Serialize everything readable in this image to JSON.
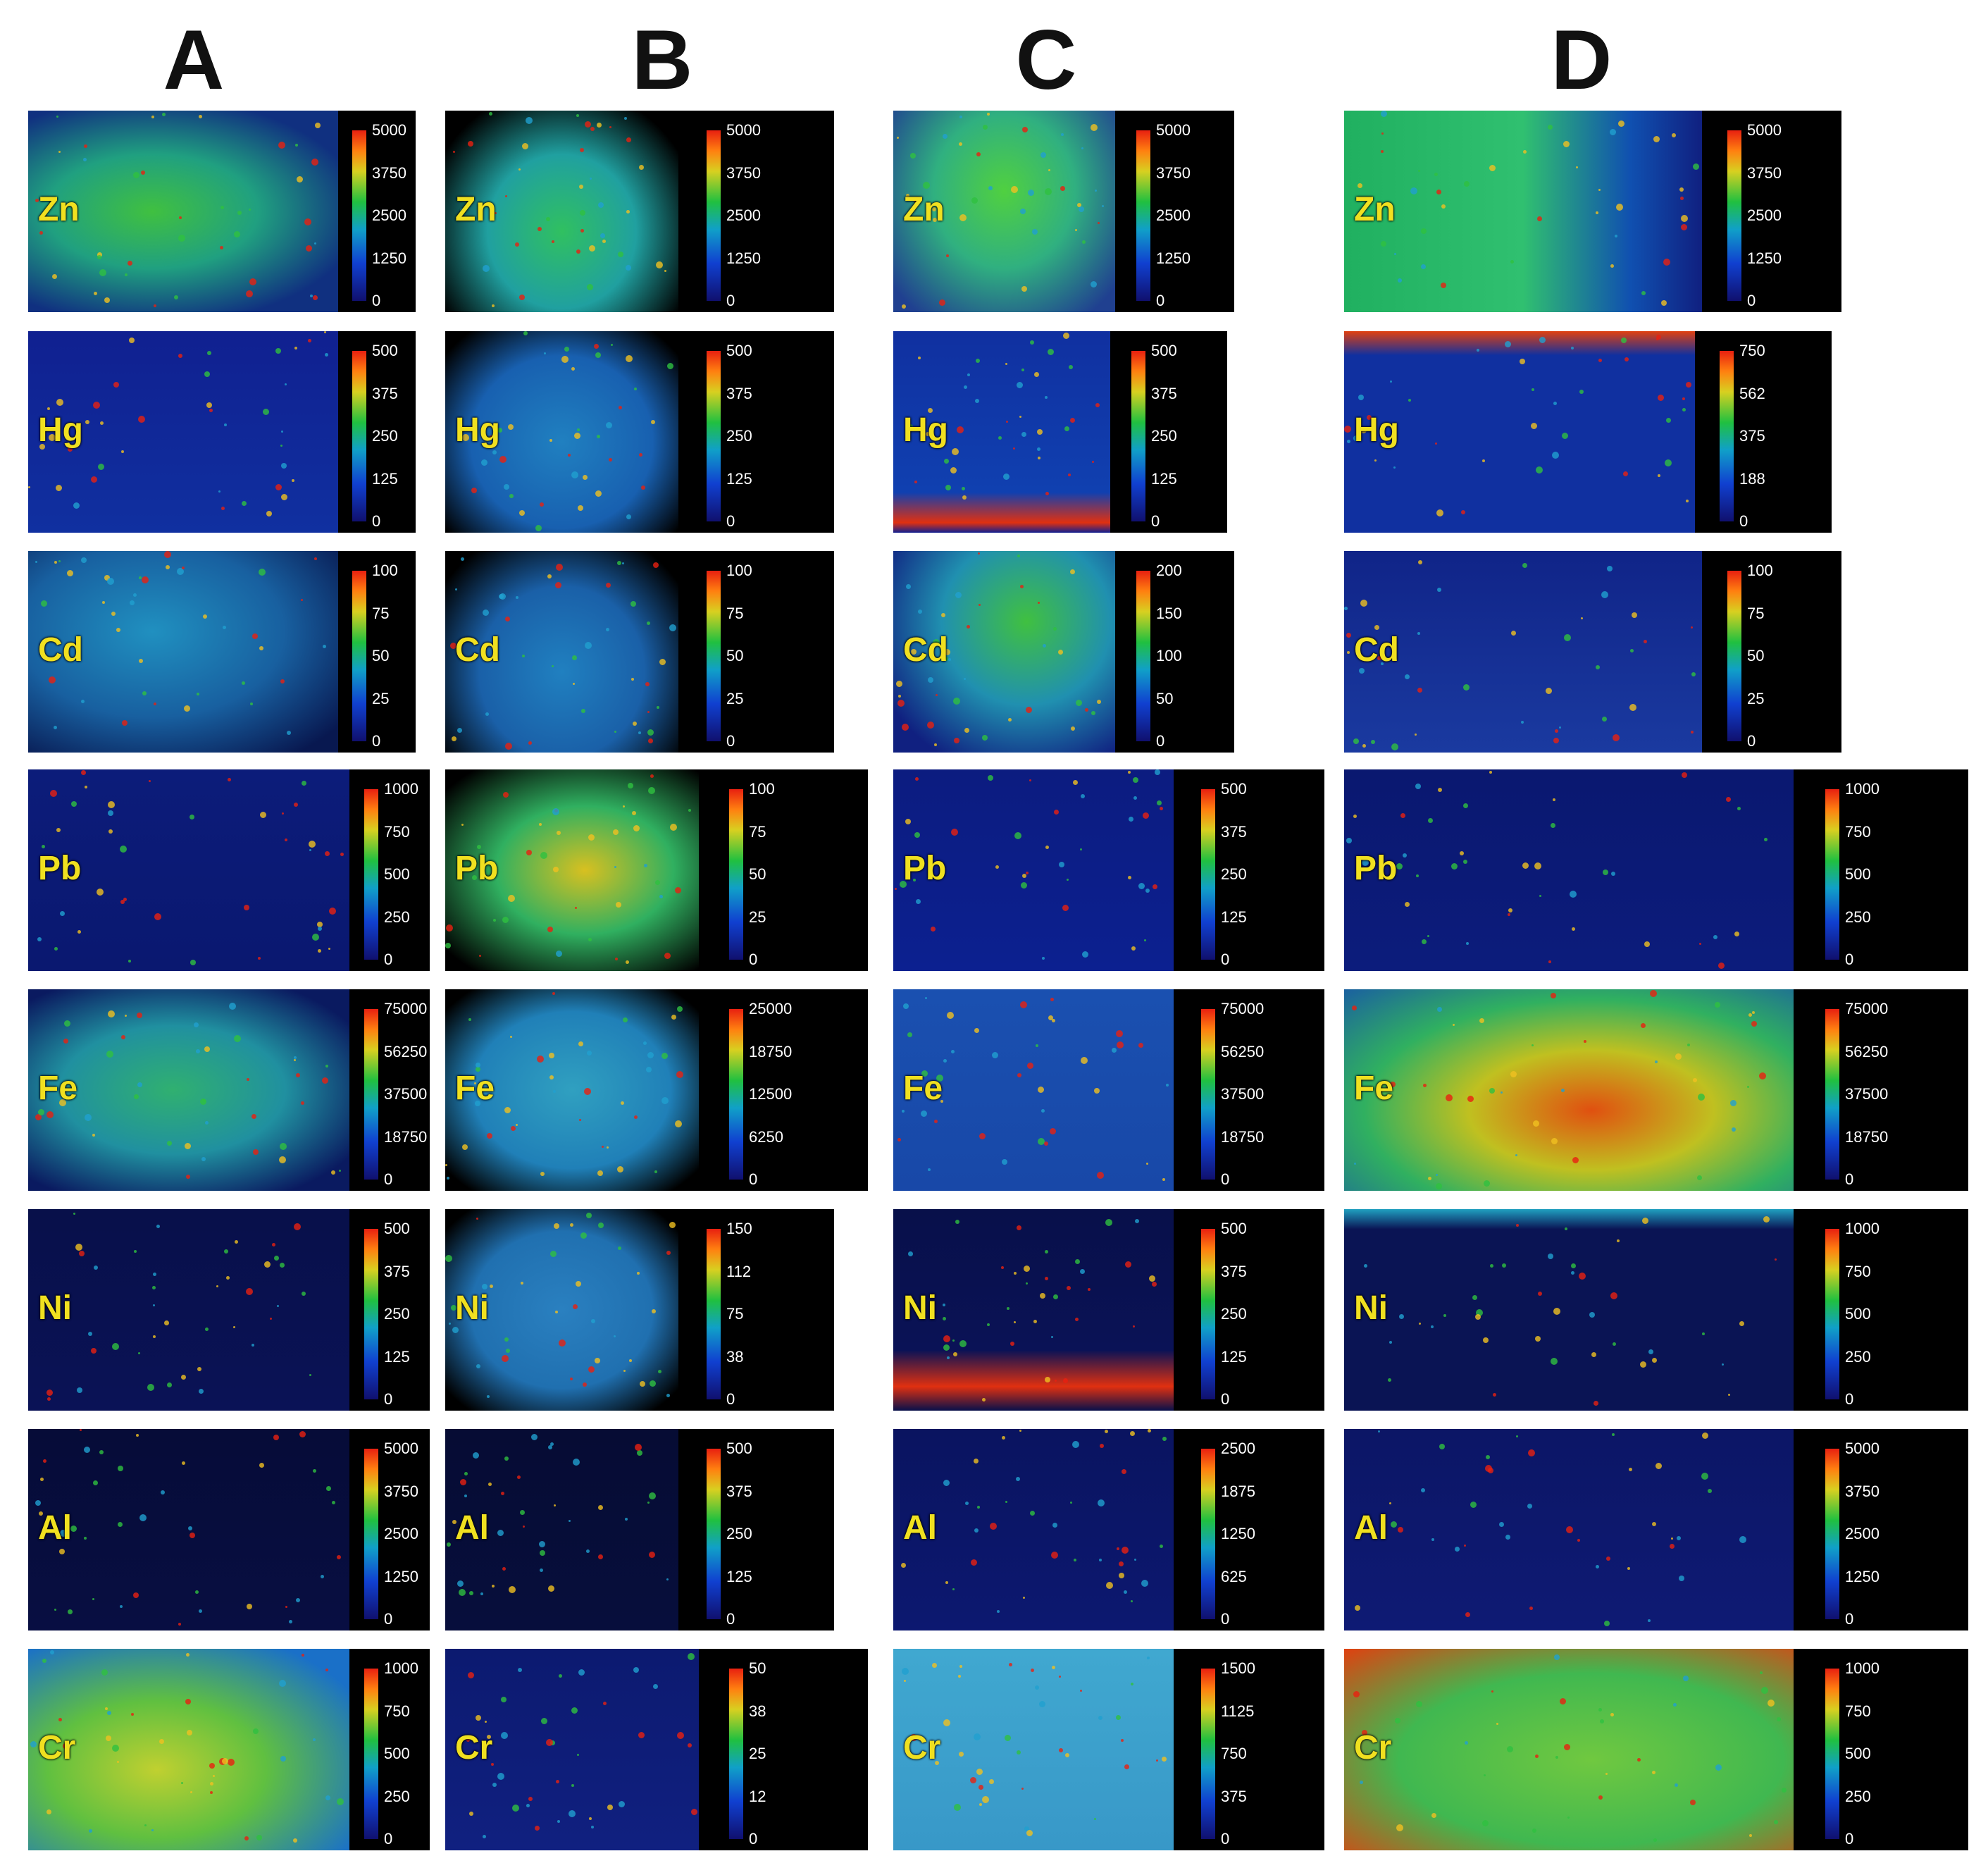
{
  "columns": [
    "A",
    "B",
    "C",
    "D"
  ],
  "rows": [
    {
      "element": "Zn",
      "scales": [
        [
          "5000",
          "3750",
          "2500",
          "1250",
          "0"
        ],
        [
          "5000",
          "3750",
          "2500",
          "1250",
          "0"
        ],
        [
          "5000",
          "3750",
          "2500",
          "1250",
          "0"
        ],
        [
          "5000",
          "3750",
          "2500",
          "1250",
          "0"
        ]
      ]
    },
    {
      "element": "Hg",
      "scales": [
        [
          "500",
          "375",
          "250",
          "125",
          "0"
        ],
        [
          "500",
          "375",
          "250",
          "125",
          "0"
        ],
        [
          "500",
          "375",
          "250",
          "125",
          "0"
        ],
        [
          "750",
          "562",
          "375",
          "188",
          "0"
        ]
      ]
    },
    {
      "element": "Cd",
      "scales": [
        [
          "100",
          "75",
          "50",
          "25",
          "0"
        ],
        [
          "100",
          "75",
          "50",
          "25",
          "0"
        ],
        [
          "200",
          "150",
          "100",
          "50",
          "0"
        ],
        [
          "100",
          "75",
          "50",
          "25",
          "0"
        ]
      ]
    },
    {
      "element": "Pb",
      "scales": [
        [
          "1000",
          "750",
          "500",
          "250",
          "0"
        ],
        [
          "100",
          "75",
          "50",
          "25",
          "0"
        ],
        [
          "500",
          "375",
          "250",
          "125",
          "0"
        ],
        [
          "1000",
          "750",
          "500",
          "250",
          "0"
        ]
      ]
    },
    {
      "element": "Fe",
      "scales": [
        [
          "75000",
          "56250",
          "37500",
          "18750",
          "0"
        ],
        [
          "25000",
          "18750",
          "12500",
          "6250",
          "0"
        ],
        [
          "75000",
          "56250",
          "37500",
          "18750",
          "0"
        ],
        [
          "75000",
          "56250",
          "37500",
          "18750",
          "0"
        ]
      ]
    },
    {
      "element": "Ni",
      "scales": [
        [
          "500",
          "375",
          "250",
          "125",
          "0"
        ],
        [
          "150",
          "112",
          "75",
          "38",
          "0"
        ],
        [
          "500",
          "375",
          "250",
          "125",
          "0"
        ],
        [
          "1000",
          "750",
          "500",
          "250",
          "0"
        ]
      ]
    },
    {
      "element": "Al",
      "scales": [
        [
          "5000",
          "3750",
          "2500",
          "1250",
          "0"
        ],
        [
          "500",
          "375",
          "250",
          "125",
          "0"
        ],
        [
          "2500",
          "1875",
          "1250",
          "625",
          "0"
        ],
        [
          "5000",
          "3750",
          "2500",
          "1250",
          "0"
        ]
      ]
    },
    {
      "element": "Cr",
      "scales": [
        [
          "1000",
          "750",
          "500",
          "250",
          "0"
        ],
        [
          "50",
          "38",
          "25",
          "12",
          "0"
        ],
        [
          "1500",
          "1125",
          "750",
          "375",
          "0"
        ],
        [
          "1000",
          "750",
          "500",
          "250",
          "0"
        ]
      ]
    }
  ],
  "colors": {
    "label": "#f0e020",
    "low": "#10106e",
    "high": "#e82010"
  }
}
